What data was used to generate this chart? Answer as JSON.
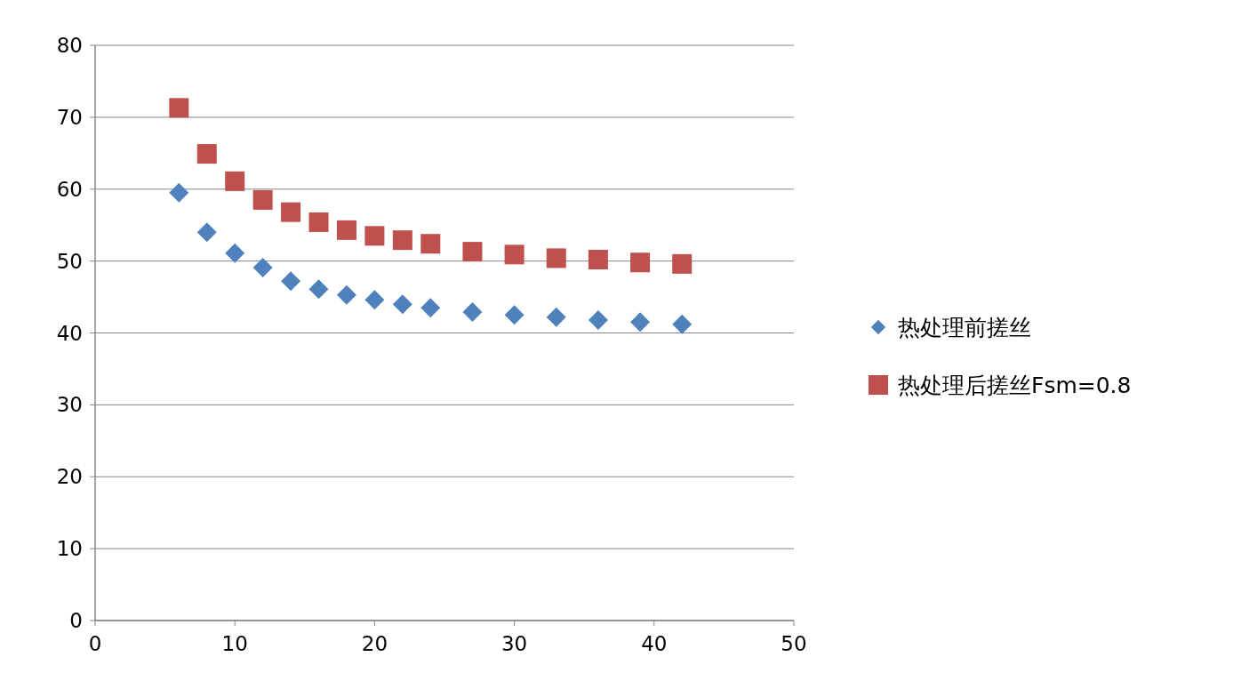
{
  "chart_data": {
    "type": "scatter",
    "xlim": [
      0,
      50
    ],
    "ylim": [
      0,
      80
    ],
    "xticks": [
      0,
      10,
      20,
      30,
      40,
      50
    ],
    "yticks": [
      0,
      10,
      20,
      30,
      40,
      50,
      60,
      70,
      80
    ],
    "grid": "y",
    "legend": "right",
    "x": [
      6,
      8,
      10,
      12,
      14,
      16,
      18,
      20,
      22,
      24,
      27,
      30,
      33,
      36,
      39,
      42
    ],
    "series": [
      {
        "name": "热处理前搓丝",
        "color": "#4f81bd",
        "marker": "diamond",
        "values": [
          59.5,
          54.0,
          51.1,
          49.1,
          47.2,
          46.1,
          45.3,
          44.6,
          44.0,
          43.5,
          42.9,
          42.5,
          42.2,
          41.8,
          41.5,
          41.2
        ]
      },
      {
        "name": "热处理后搓丝Fsm=0.8",
        "color": "#c0504d",
        "marker": "square",
        "values": [
          71.3,
          64.9,
          61.1,
          58.5,
          56.8,
          55.4,
          54.3,
          53.5,
          52.9,
          52.4,
          51.3,
          50.9,
          50.4,
          50.2,
          49.8,
          49.6
        ]
      }
    ]
  }
}
